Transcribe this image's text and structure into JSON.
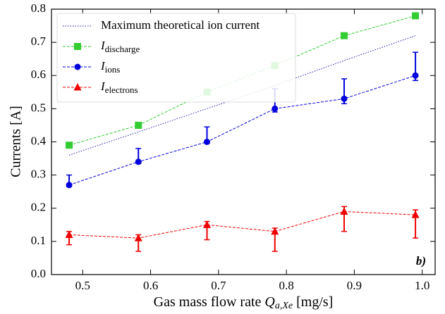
{
  "chart_data": {
    "type": "line",
    "x_label": {
      "text": "Gas mass flow rate",
      "symbol": "Q",
      "subscript": "a,Xe",
      "unit": "[mg/s]"
    },
    "y_label": "Currents [A]",
    "annotation": "b)",
    "x": [
      0.48,
      0.582,
      0.683,
      0.783,
      0.885,
      0.99
    ],
    "xlim": [
      0.454,
      1.019
    ],
    "xticks": [
      0.5,
      0.6,
      0.7,
      0.8,
      0.9,
      {
        "value": 1.0,
        "label": "1.0"
      }
    ],
    "ylim": [
      0,
      0.8
    ],
    "yticks": [
      {
        "value": 0,
        "label": "0.0"
      },
      0.1,
      0.2,
      0.3,
      0.4,
      0.5,
      0.6,
      0.7,
      0.8
    ],
    "legend": "upper left",
    "series": [
      {
        "name": "Maximum theoretical ion current",
        "color": "#1f1fa8",
        "style": "dotted",
        "marker": "none",
        "values": [
          0.36,
          0.43,
          0.5,
          0.57,
          0.645,
          0.72
        ]
      },
      {
        "name": "I",
        "name_sub": "discharge",
        "color": "#33cc33",
        "style": "dashed",
        "marker": "square",
        "values": [
          0.39,
          0.45,
          0.55,
          0.63,
          0.72,
          0.78
        ]
      },
      {
        "name": "I",
        "name_sub": "ions",
        "color": "#0000dd",
        "style": "dashed",
        "marker": "circle",
        "values": [
          0.27,
          0.34,
          0.4,
          0.5,
          0.53,
          0.6
        ],
        "err_upper": [
          0.03,
          0.04,
          0.045,
          0.06,
          0.06,
          0.07
        ],
        "err_lower": [
          0.005,
          0.005,
          0.005,
          0.01,
          0.015,
          0.015
        ]
      },
      {
        "name": "I",
        "name_sub": "electrons",
        "color": "#ee0000",
        "style": "dashed",
        "marker": "triangle",
        "values": [
          0.12,
          0.11,
          0.15,
          0.13,
          0.19,
          0.18
        ],
        "err_upper": [
          0.01,
          0.01,
          0.01,
          0.01,
          0.015,
          0.015
        ],
        "err_lower": [
          0.03,
          0.04,
          0.045,
          0.06,
          0.06,
          0.07
        ]
      }
    ]
  }
}
